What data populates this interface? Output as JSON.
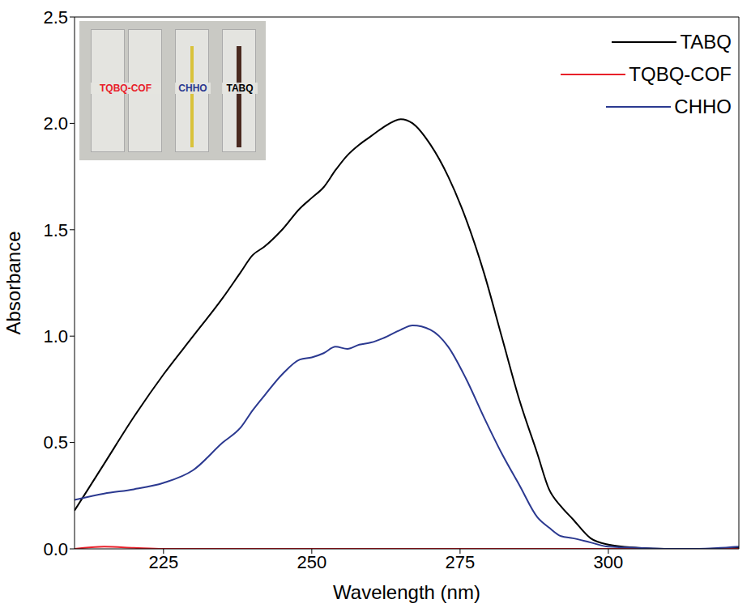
{
  "chart_data": {
    "type": "line",
    "x_label": "Wavelength (nm)",
    "y_label": "Absorbance",
    "x": [
      210,
      215,
      220,
      225,
      230,
      235,
      238,
      240,
      242,
      245,
      248,
      250,
      252,
      254,
      256,
      258,
      260,
      262,
      265,
      267,
      270,
      273,
      276,
      279,
      282,
      285,
      288,
      290,
      292,
      294,
      297,
      300,
      305,
      310,
      315,
      322
    ],
    "series": [
      {
        "name": "TABQ",
        "color": "#000000",
        "values": [
          0.18,
          0.4,
          0.62,
          0.82,
          1.0,
          1.18,
          1.3,
          1.38,
          1.42,
          1.5,
          1.6,
          1.65,
          1.7,
          1.78,
          1.85,
          1.9,
          1.94,
          1.98,
          2.02,
          2.0,
          1.9,
          1.75,
          1.55,
          1.3,
          1.0,
          0.7,
          0.45,
          0.28,
          0.2,
          0.14,
          0.05,
          0.02,
          0.005,
          0,
          0,
          0.005
        ]
      },
      {
        "name": "TQBQ-COF",
        "color": "#e8202a",
        "values": [
          0,
          0.01,
          0.005,
          0,
          0,
          0,
          0,
          0,
          0,
          0,
          0,
          0,
          0,
          0,
          0,
          0,
          0,
          0,
          0,
          0,
          0,
          0,
          0,
          0,
          0,
          0,
          0,
          0,
          0,
          0,
          0,
          0,
          0,
          0,
          0,
          0
        ]
      },
      {
        "name": "CHHO",
        "color": "#2b3990",
        "values": [
          0.23,
          0.26,
          0.28,
          0.31,
          0.37,
          0.5,
          0.57,
          0.65,
          0.72,
          0.82,
          0.89,
          0.9,
          0.92,
          0.95,
          0.94,
          0.96,
          0.97,
          0.99,
          1.03,
          1.05,
          1.03,
          0.95,
          0.8,
          0.62,
          0.45,
          0.3,
          0.15,
          0.1,
          0.06,
          0.05,
          0.03,
          0.01,
          0.005,
          0,
          0,
          0.01
        ]
      }
    ],
    "xlim": [
      210,
      322
    ],
    "xticks": [
      225,
      250,
      275,
      300
    ],
    "ylim": [
      0,
      2.5
    ],
    "yticks": [
      {
        "value": 0,
        "label": "0.0"
      },
      0.5,
      {
        "value": 1,
        "label": "1.0"
      },
      1.5,
      {
        "value": 2,
        "label": "2.0"
      },
      2.5
    ],
    "legend": "upper right",
    "annotations": [
      {
        "text": "TQBQ-COF",
        "color": "#e8202a"
      },
      {
        "text": "CHHO",
        "color": "#2b3990"
      },
      {
        "text": "TABQ",
        "color": "#000000"
      }
    ]
  }
}
